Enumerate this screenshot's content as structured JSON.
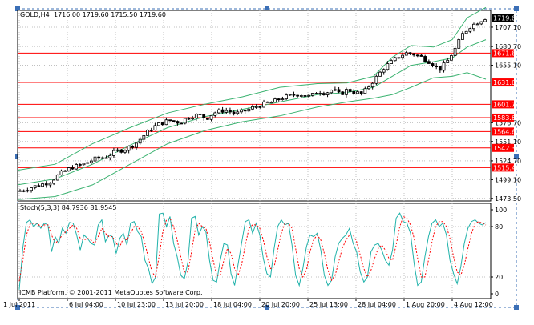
{
  "chart_data": [
    {
      "type": "candlestick",
      "symbol_header": "GOLD,H4",
      "ohlc_header": "1716.00 1719.60 1715.50 1719.60",
      "background": "#ffffff",
      "grid": true,
      "grid_color": "#c0c0c0",
      "candle_up_color": "#ffffff",
      "candle_down_color": "#000000",
      "ylim": [
        1470,
        1730
      ],
      "y_ticks": [
        "1707.10",
        "1680.70",
        "1655.10",
        "1576.70",
        "1551.10",
        "1524.70",
        "1499.10",
        "1473.50"
      ],
      "horizontal_levels": [
        {
          "label": "1671.66",
          "value": 1671.66
        },
        {
          "label": "1631.63",
          "value": 1631.63
        },
        {
          "label": "1601.73",
          "value": 1601.73
        },
        {
          "label": "1583.68",
          "value": 1583.68
        },
        {
          "label": "1564.63",
          "value": 1564.63
        },
        {
          "label": "1542.34",
          "value": 1542.34
        },
        {
          "label": "1515.48",
          "value": 1515.48
        }
      ],
      "level_color": "#ff0000",
      "current_price_label": "1719.60",
      "indicator_color": "#3cb371",
      "indicator": "Bollinger Bands",
      "close_path": [
        [
          0,
          1484
        ],
        [
          8,
          1490
        ],
        [
          16,
          1496
        ],
        [
          22,
          1508
        ],
        [
          28,
          1516
        ],
        [
          34,
          1520
        ],
        [
          40,
          1527
        ],
        [
          46,
          1530
        ],
        [
          52,
          1538
        ],
        [
          56,
          1540
        ],
        [
          62,
          1548
        ],
        [
          66,
          1558
        ],
        [
          70,
          1568
        ],
        [
          74,
          1574
        ],
        [
          80,
          1580
        ],
        [
          86,
          1577
        ],
        [
          90,
          1584
        ],
        [
          96,
          1588
        ],
        [
          100,
          1582
        ],
        [
          104,
          1590
        ],
        [
          110,
          1594
        ],
        [
          116,
          1589
        ],
        [
          120,
          1592
        ],
        [
          126,
          1598
        ],
        [
          132,
          1603
        ],
        [
          136,
          1605
        ],
        [
          140,
          1610
        ],
        [
          146,
          1614
        ],
        [
          150,
          1616
        ],
        [
          156,
          1612
        ],
        [
          160,
          1620
        ],
        [
          164,
          1617
        ],
        [
          168,
          1622
        ],
        [
          172,
          1615
        ],
        [
          176,
          1622
        ],
        [
          180,
          1618
        ],
        [
          184,
          1616
        ],
        [
          188,
          1628
        ],
        [
          192,
          1640
        ],
        [
          196,
          1653
        ],
        [
          200,
          1660
        ],
        [
          204,
          1668
        ],
        [
          208,
          1672
        ],
        [
          212,
          1670
        ],
        [
          216,
          1666
        ],
        [
          220,
          1660
        ],
        [
          224,
          1652
        ],
        [
          226,
          1650
        ],
        [
          230,
          1662
        ],
        [
          234,
          1678
        ],
        [
          238,
          1698
        ],
        [
          242,
          1708
        ],
        [
          246,
          1714
        ],
        [
          250,
          1719.6
        ]
      ],
      "bb_upper": [
        [
          0,
          1512
        ],
        [
          20,
          1520
        ],
        [
          40,
          1548
        ],
        [
          60,
          1570
        ],
        [
          80,
          1590
        ],
        [
          100,
          1602
        ],
        [
          120,
          1612
        ],
        [
          140,
          1625
        ],
        [
          160,
          1630
        ],
        [
          176,
          1631
        ],
        [
          190,
          1640
        ],
        [
          200,
          1666
        ],
        [
          210,
          1682
        ],
        [
          222,
          1680
        ],
        [
          232,
          1690
        ],
        [
          240,
          1720
        ],
        [
          250,
          1734
        ]
      ],
      "bb_middle": [
        [
          0,
          1492
        ],
        [
          20,
          1500
        ],
        [
          40,
          1520
        ],
        [
          60,
          1546
        ],
        [
          80,
          1570
        ],
        [
          100,
          1585
        ],
        [
          120,
          1595
        ],
        [
          140,
          1605
        ],
        [
          160,
          1615
        ],
        [
          176,
          1618
        ],
        [
          190,
          1625
        ],
        [
          200,
          1640
        ],
        [
          210,
          1655
        ],
        [
          222,
          1660
        ],
        [
          232,
          1665
        ],
        [
          240,
          1680
        ],
        [
          250,
          1690
        ]
      ],
      "bb_lower": [
        [
          0,
          1472
        ],
        [
          20,
          1476
        ],
        [
          40,
          1492
        ],
        [
          60,
          1520
        ],
        [
          80,
          1548
        ],
        [
          100,
          1566
        ],
        [
          120,
          1578
        ],
        [
          140,
          1586
        ],
        [
          160,
          1598
        ],
        [
          176,
          1605
        ],
        [
          190,
          1610
        ],
        [
          200,
          1615
        ],
        [
          210,
          1625
        ],
        [
          222,
          1638
        ],
        [
          232,
          1640
        ],
        [
          240,
          1645
        ],
        [
          250,
          1636
        ]
      ]
    },
    {
      "type": "line",
      "indicator_label": "Stoch(5,3,3) 84.7936 81.9545",
      "series": [
        {
          "name": "main",
          "color": "#20b2aa",
          "style": "solid",
          "values": [
            5,
            55,
            85,
            88,
            80,
            84,
            78,
            84,
            82,
            50,
            68,
            60,
            78,
            72,
            85,
            84,
            70,
            52,
            70,
            66,
            60,
            58,
            82,
            88,
            62,
            70,
            68,
            48,
            66,
            72,
            58,
            84,
            86,
            74,
            68,
            40,
            30,
            12,
            20,
            95,
            96,
            80,
            92,
            60,
            44,
            22,
            18,
            38,
            90,
            92,
            70,
            80,
            74,
            40,
            16,
            14,
            40,
            60,
            58,
            24,
            10,
            36,
            62,
            86,
            88,
            72,
            84,
            70,
            42,
            24,
            20,
            54,
            80,
            88,
            82,
            84,
            58,
            22,
            10,
            30,
            56,
            70,
            68,
            72,
            52,
            22,
            10,
            16,
            44,
            60,
            66,
            70,
            78,
            60,
            50,
            26,
            14,
            20,
            50,
            58,
            60,
            52,
            40,
            34,
            52,
            90,
            96,
            86,
            84,
            72,
            36,
            10,
            14,
            44,
            68,
            84,
            88,
            80,
            84,
            70,
            40,
            24,
            12,
            32,
            60,
            78,
            86,
            88,
            84,
            82,
            84.79
          ]
        },
        {
          "name": "signal",
          "color": "#ff0000",
          "style": "dashed",
          "values": [
            15,
            40,
            70,
            83,
            84,
            84,
            80,
            82,
            82,
            70,
            60,
            64,
            70,
            74,
            78,
            82,
            78,
            66,
            64,
            66,
            64,
            60,
            68,
            78,
            72,
            68,
            68,
            60,
            56,
            66,
            64,
            72,
            80,
            80,
            74,
            60,
            42,
            26,
            20,
            46,
            74,
            88,
            90,
            80,
            64,
            44,
            26,
            26,
            50,
            76,
            84,
            80,
            78,
            62,
            40,
            22,
            22,
            40,
            54,
            48,
            30,
            22,
            36,
            58,
            78,
            82,
            82,
            78,
            64,
            44,
            30,
            32,
            52,
            72,
            84,
            84,
            78,
            54,
            30,
            20,
            28,
            50,
            64,
            70,
            64,
            48,
            28,
            16,
            22,
            38,
            54,
            64,
            70,
            70,
            62,
            46,
            30,
            20,
            28,
            42,
            54,
            58,
            52,
            42,
            40,
            58,
            80,
            92,
            90,
            82,
            66,
            42,
            20,
            20,
            40,
            62,
            80,
            86,
            86,
            80,
            66,
            44,
            26,
            22,
            34,
            54,
            72,
            84,
            86,
            84,
            81.95
          ]
        }
      ],
      "ylim": [
        0,
        100
      ],
      "y_ticks": [
        "100",
        "80",
        "20",
        "0"
      ],
      "ref_levels": [
        20,
        80
      ],
      "footer": "ICMB Platform, © 2001-2011 MetaQuotes Software Corp."
    }
  ],
  "x_axis": {
    "tick_labels": [
      "1 Jul 2011",
      "6 Jul 04:00",
      "10 Jul 23:00",
      "13 Jul 20:00",
      "18 Jul 04:00",
      "20 Jul 20:00",
      "25 Jul 13:00",
      "28 Jul 04:00",
      "1 Aug 20:00",
      "4 Aug 12:00"
    ]
  }
}
